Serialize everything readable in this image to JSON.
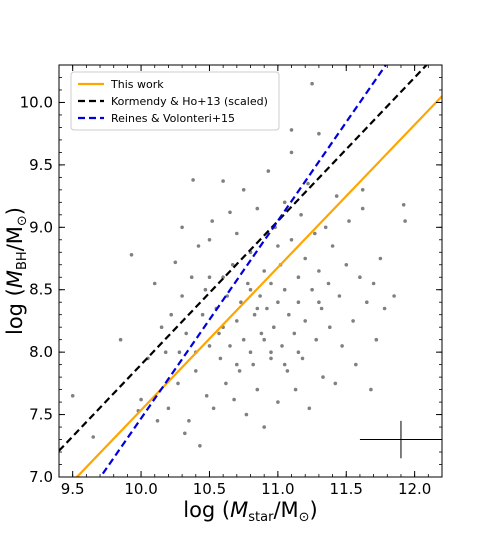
{
  "chart_data": {
    "type": "scatter",
    "title": "",
    "xlabel": {
      "prefix": "log (",
      "main": "M",
      "sub": "star",
      "sep": "/M",
      "sun": "⊙",
      "suffix": ")"
    },
    "ylabel": {
      "prefix": "log (",
      "main": "M",
      "sub": "BH",
      "sep": "/M",
      "sun": "⊙",
      "suffix": ")"
    },
    "xlim": [
      9.4,
      12.2
    ],
    "ylim": [
      7.0,
      10.3
    ],
    "xticks": [
      "9.5",
      "10.0",
      "10.5",
      "11.0",
      "11.5",
      "12.0"
    ],
    "yticks": [
      "7.0",
      "7.5",
      "8.0",
      "8.5",
      "9.0",
      "9.5",
      "10.0"
    ],
    "legend_position": "top-left",
    "series": [
      {
        "name": "This work",
        "kind": "line",
        "style": "solid",
        "color": "#FFA500",
        "x": [
          9.4,
          12.2
        ],
        "y": [
          6.85,
          10.05
        ]
      },
      {
        "name": "Kormendy & Ho+13 (scaled)",
        "kind": "line",
        "style": "dashed",
        "color": "#000000",
        "x": [
          9.4,
          12.2
        ],
        "y": [
          7.21,
          10.43
        ]
      },
      {
        "name": "Reines & Volonteri+15",
        "kind": "line",
        "style": "dashed",
        "color": "#0000DD",
        "x": [
          9.4,
          12.2
        ],
        "y": [
          6.52,
          10.95
        ]
      }
    ],
    "scatter_color": "#808080",
    "errorbar": {
      "x": 11.9,
      "y": 7.3,
      "xerr": 0.3,
      "yerr": 0.15
    },
    "points": [
      [
        9.5,
        7.65
      ],
      [
        9.65,
        7.32
      ],
      [
        9.85,
        8.1
      ],
      [
        9.93,
        8.78
      ],
      [
        9.98,
        7.53
      ],
      [
        10.0,
        7.62
      ],
      [
        10.05,
        7.95
      ],
      [
        10.1,
        8.55
      ],
      [
        10.12,
        7.45
      ],
      [
        10.15,
        8.2
      ],
      [
        10.18,
        8.0
      ],
      [
        10.2,
        7.55
      ],
      [
        10.22,
        8.3
      ],
      [
        10.25,
        8.72
      ],
      [
        10.27,
        7.75
      ],
      [
        10.28,
        8.0
      ],
      [
        10.3,
        8.45
      ],
      [
        10.3,
        9.0
      ],
      [
        10.32,
        7.35
      ],
      [
        10.33,
        8.15
      ],
      [
        10.35,
        7.45
      ],
      [
        10.37,
        8.6
      ],
      [
        10.38,
        9.38
      ],
      [
        10.4,
        8.0
      ],
      [
        10.4,
        7.85
      ],
      [
        10.42,
        8.85
      ],
      [
        10.43,
        7.25
      ],
      [
        10.45,
        8.3
      ],
      [
        10.47,
        8.5
      ],
      [
        10.48,
        7.65
      ],
      [
        10.5,
        8.05
      ],
      [
        10.5,
        8.9
      ],
      [
        10.52,
        9.05
      ],
      [
        10.53,
        7.55
      ],
      [
        10.55,
        8.35
      ],
      [
        10.57,
        8.15
      ],
      [
        10.58,
        7.95
      ],
      [
        10.6,
        8.6
      ],
      [
        10.6,
        9.37
      ],
      [
        10.62,
        7.75
      ],
      [
        10.63,
        8.45
      ],
      [
        10.65,
        8.05
      ],
      [
        10.65,
        9.12
      ],
      [
        10.67,
        8.7
      ],
      [
        10.68,
        7.62
      ],
      [
        10.7,
        8.25
      ],
      [
        10.7,
        8.95
      ],
      [
        10.72,
        7.85
      ],
      [
        10.73,
        8.4
      ],
      [
        10.75,
        9.3
      ],
      [
        10.75,
        8.1
      ],
      [
        10.77,
        7.5
      ],
      [
        10.78,
        8.55
      ],
      [
        10.8,
        8.0
      ],
      [
        10.8,
        8.8
      ],
      [
        10.82,
        7.9
      ],
      [
        10.83,
        8.3
      ],
      [
        10.85,
        9.15
      ],
      [
        10.85,
        7.7
      ],
      [
        10.87,
        8.45
      ],
      [
        10.88,
        8.15
      ],
      [
        10.9,
        8.65
      ],
      [
        10.9,
        7.4
      ],
      [
        10.92,
        8.35
      ],
      [
        10.93,
        9.45
      ],
      [
        10.95,
        7.95
      ],
      [
        10.95,
        8.55
      ],
      [
        10.97,
        8.2
      ],
      [
        10.98,
        9.0
      ],
      [
        11.0,
        8.4
      ],
      [
        11.0,
        7.6
      ],
      [
        11.02,
        8.7
      ],
      [
        11.03,
        8.05
      ],
      [
        11.05,
        9.2
      ],
      [
        11.05,
        8.5
      ],
      [
        11.07,
        7.85
      ],
      [
        11.08,
        8.3
      ],
      [
        11.1,
        8.9
      ],
      [
        11.1,
        9.6
      ],
      [
        11.12,
        8.15
      ],
      [
        11.13,
        7.7
      ],
      [
        11.15,
        8.6
      ],
      [
        11.15,
        8.4
      ],
      [
        11.17,
        9.1
      ],
      [
        11.18,
        7.95
      ],
      [
        11.2,
        8.75
      ],
      [
        11.2,
        8.25
      ],
      [
        11.22,
        9.35
      ],
      [
        11.23,
        7.55
      ],
      [
        11.25,
        8.5
      ],
      [
        11.27,
        8.95
      ],
      [
        11.28,
        8.1
      ],
      [
        11.3,
        8.65
      ],
      [
        11.3,
        9.75
      ],
      [
        11.32,
        8.35
      ],
      [
        11.33,
        7.8
      ],
      [
        11.35,
        9.0
      ],
      [
        11.37,
        8.55
      ],
      [
        11.38,
        8.2
      ],
      [
        11.4,
        8.85
      ],
      [
        11.42,
        7.75
      ],
      [
        11.43,
        9.25
      ],
      [
        11.45,
        8.45
      ],
      [
        11.47,
        8.05
      ],
      [
        11.5,
        8.7
      ],
      [
        11.52,
        9.05
      ],
      [
        11.55,
        8.25
      ],
      [
        11.57,
        7.9
      ],
      [
        11.6,
        8.6
      ],
      [
        11.62,
        9.15
      ],
      [
        11.65,
        8.4
      ],
      [
        11.68,
        7.7
      ],
      [
        11.7,
        8.55
      ],
      [
        11.72,
        8.1
      ],
      [
        11.75,
        8.75
      ],
      [
        11.78,
        8.35
      ],
      [
        11.85,
        8.45
      ],
      [
        11.92,
        9.18
      ],
      [
        11.93,
        9.05
      ],
      [
        11.25,
        10.15
      ],
      [
        11.1,
        9.78
      ],
      [
        10.97,
        9.9
      ],
      [
        11.62,
        9.3
      ],
      [
        10.85,
        8.35
      ],
      [
        10.95,
        8.0
      ],
      [
        11.05,
        7.9
      ],
      [
        10.6,
        8.2
      ],
      [
        10.7,
        7.9
      ],
      [
        10.8,
        8.5
      ],
      [
        10.9,
        8.1
      ],
      [
        11.0,
        8.85
      ],
      [
        11.15,
        8.0
      ],
      [
        11.3,
        8.4
      ],
      [
        10.5,
        8.6
      ]
    ]
  }
}
